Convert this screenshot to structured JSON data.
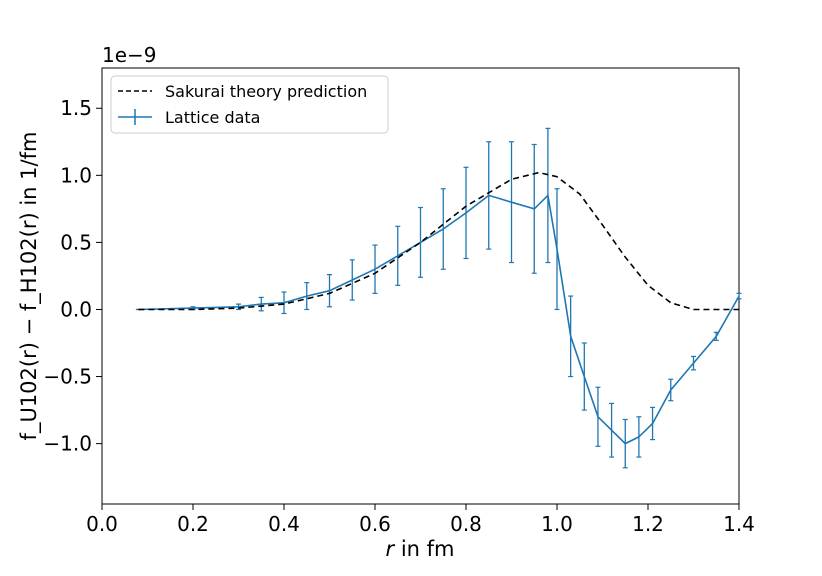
{
  "chart_data": {
    "type": "line",
    "xlabel_var": "r",
    "xlabel_rest": " in fm",
    "ylabel": "f_U102(r) − f_H102(r) in 1/fm",
    "y_offset_text": "1e−9",
    "xlim": [
      0.0,
      1.4
    ],
    "ylim": [
      -1.45,
      1.8
    ],
    "y_scale_multiplier": 1e-09,
    "x_ticks": [
      0.0,
      0.2,
      0.4,
      0.6,
      0.8,
      1.0,
      1.2,
      1.4
    ],
    "x_tick_labels": [
      "0.0",
      "0.2",
      "0.4",
      "0.6",
      "0.8",
      "1.0",
      "1.2",
      "1.4"
    ],
    "y_ticks": [
      -1.0,
      -0.5,
      0.0,
      0.5,
      1.0,
      1.5
    ],
    "y_tick_labels": [
      "−1.0",
      "−0.5",
      "0.0",
      "0.5",
      "1.0",
      "1.5"
    ],
    "grid": false,
    "legend_position": "upper-left",
    "series": [
      {
        "name": "Sakurai theory prediction",
        "style": "dashed",
        "color": "#000000",
        "x": [
          0.08,
          0.2,
          0.3,
          0.4,
          0.5,
          0.6,
          0.7,
          0.8,
          0.9,
          0.96,
          1.0,
          1.05,
          1.1,
          1.15,
          1.2,
          1.25,
          1.3,
          1.35,
          1.4
        ],
        "y": [
          0.0,
          0.0,
          0.01,
          0.04,
          0.12,
          0.27,
          0.5,
          0.77,
          0.97,
          1.02,
          0.99,
          0.86,
          0.63,
          0.39,
          0.18,
          0.05,
          0.0,
          0.0,
          0.0
        ]
      },
      {
        "name": "Lattice data",
        "style": "errorbar",
        "color": "#1f77b4",
        "x": [
          0.08,
          0.2,
          0.3,
          0.35,
          0.4,
          0.45,
          0.5,
          0.55,
          0.6,
          0.65,
          0.7,
          0.75,
          0.8,
          0.85,
          0.9,
          0.95,
          0.98,
          1.0,
          1.03,
          1.06,
          1.09,
          1.12,
          1.15,
          1.18,
          1.21,
          1.25,
          1.3,
          1.35,
          1.4
        ],
        "y": [
          0.0,
          0.01,
          0.02,
          0.04,
          0.05,
          0.1,
          0.14,
          0.22,
          0.3,
          0.4,
          0.5,
          0.6,
          0.72,
          0.85,
          0.8,
          0.75,
          0.85,
          0.45,
          -0.2,
          -0.5,
          -0.8,
          -0.9,
          -1.0,
          -0.95,
          -0.85,
          -0.6,
          -0.4,
          -0.2,
          0.1
        ],
        "err": [
          0.0,
          0.01,
          0.02,
          0.05,
          0.08,
          0.1,
          0.12,
          0.15,
          0.18,
          0.22,
          0.26,
          0.3,
          0.34,
          0.4,
          0.45,
          0.48,
          0.5,
          0.45,
          0.3,
          0.25,
          0.22,
          0.2,
          0.18,
          0.15,
          0.12,
          0.08,
          0.05,
          0.03,
          0.02
        ]
      }
    ]
  }
}
